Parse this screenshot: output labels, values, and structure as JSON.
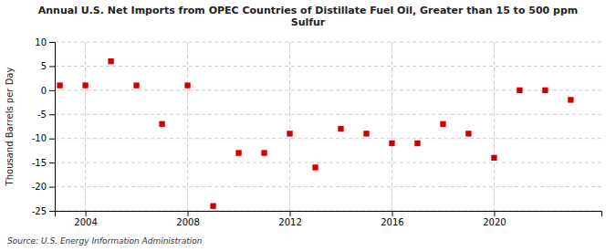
{
  "chart_data": {
    "type": "scatter",
    "title": "Annual U.S. Net Imports from OPEC Countries of Distillate Fuel Oil, Greater than 15 to 500 ppm\nSulfur",
    "ylabel": "Thousand Barrels per Day",
    "annotations": [
      "Source: U.S. Energy Information Administration"
    ],
    "x": [
      2003,
      2004,
      2005,
      2006,
      2007,
      2008,
      2009,
      2010,
      2011,
      2012,
      2013,
      2014,
      2015,
      2016,
      2017,
      2018,
      2019,
      2020,
      2021,
      2022,
      2023
    ],
    "values": [
      1,
      1,
      6,
      1,
      -7,
      1,
      -24,
      -13,
      -13,
      -9,
      -16,
      -8,
      -9,
      -11,
      -11,
      -7,
      -9,
      -14,
      0,
      0,
      -2
    ],
    "color": "#cc0000",
    "marker": "square",
    "xlim": [
      2002.8,
      2024.2
    ],
    "xticks": [
      2004,
      2008,
      2012,
      2016,
      2020
    ],
    "ylim": [
      -25,
      10
    ],
    "yticks": [
      -25,
      -20,
      -15,
      -10,
      -5,
      0,
      5,
      10
    ],
    "grid": true
  }
}
